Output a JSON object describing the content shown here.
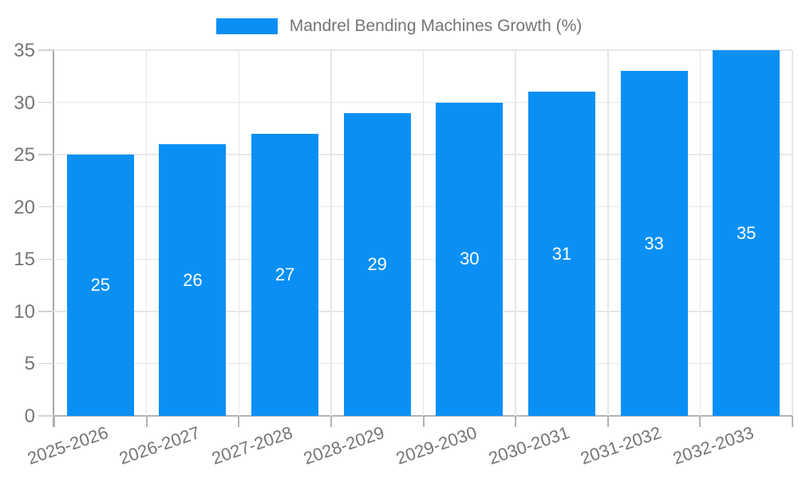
{
  "legend": {
    "label": "Mandrel Bending Machines Growth (%)"
  },
  "chart_data": {
    "type": "bar",
    "title": "",
    "categories": [
      "2025-2026",
      "2026-2027",
      "2027-2028",
      "2028-2029",
      "2029-2030",
      "2030-2031",
      "2031-2032",
      "2032-2033"
    ],
    "series": [
      {
        "name": "Mandrel Bending Machines Growth (%)",
        "values": [
          25,
          26,
          27,
          29,
          30,
          31,
          33,
          35
        ]
      }
    ],
    "value_labels": [
      "25",
      "26",
      "27",
      "29",
      "30",
      "31",
      "33",
      "35"
    ],
    "xlabel": "",
    "ylabel": "",
    "ylim": [
      0,
      35
    ],
    "yticks": [
      0,
      5,
      10,
      15,
      20,
      25,
      30,
      35
    ],
    "grid": true,
    "legend_position": "top-center",
    "bar_color": "#0a90f5",
    "value_label_color": "#ffffff",
    "axis_text_color": "#757575",
    "gridline_color": "#e7e7e7"
  }
}
